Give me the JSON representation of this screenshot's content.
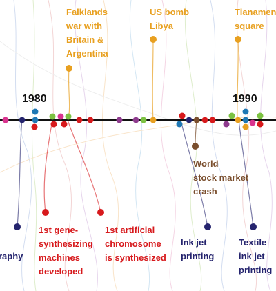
{
  "colors": {
    "axis": "#111111",
    "orange": "#e8a020",
    "red": "#d7191c",
    "navy": "#25246e",
    "brown": "#7a4e2d",
    "blue": "#1f78b4",
    "green": "#7cc242",
    "purple": "#8e3b8e",
    "pink": "#d9348f",
    "gray": "#9e9e9e"
  },
  "axis": {
    "years": [
      "1980",
      "1990"
    ]
  },
  "events": [
    {
      "id": "falklands",
      "category": "orange",
      "lines": [
        "Falklands",
        "war with",
        "Britain &",
        "Argentina"
      ]
    },
    {
      "id": "us-bomb-libya",
      "category": "orange",
      "lines": [
        "US bomb",
        "Libya"
      ]
    },
    {
      "id": "tiananmen",
      "category": "orange",
      "lines": [
        "Tianamen",
        "square"
      ]
    },
    {
      "id": "stock-crash",
      "category": "brown",
      "lines": [
        "World",
        "stock market",
        "crash"
      ]
    },
    {
      "id": "gene-synth",
      "category": "red",
      "lines": [
        "1st gene-",
        "synthesizing",
        "machines",
        "developed"
      ]
    },
    {
      "id": "artificial-chromosome",
      "category": "red",
      "lines": [
        "1st artificial",
        "chromosome",
        "is synthesized"
      ]
    },
    {
      "id": "photography-partial",
      "category": "navy",
      "lines": [
        "raphy"
      ]
    },
    {
      "id": "ink-jet",
      "category": "navy",
      "lines": [
        "Ink jet",
        "printing"
      ]
    },
    {
      "id": "textile-ink-jet",
      "category": "navy",
      "lines": [
        "Textile",
        "ink jet",
        "printing"
      ]
    }
  ]
}
